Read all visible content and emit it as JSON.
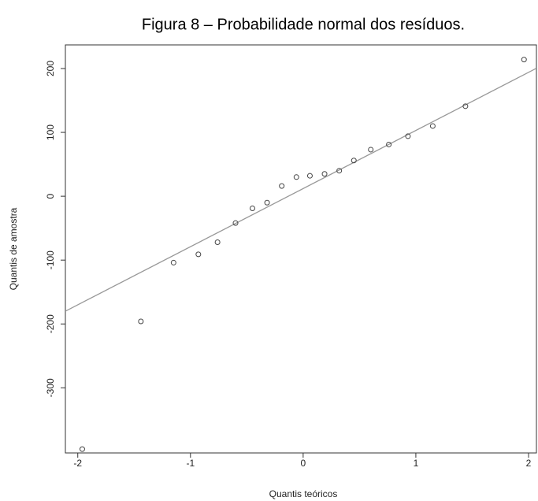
{
  "chart_data": {
    "type": "scatter",
    "title": "Figura 8 – Probabilidade normal dos resíduos.",
    "x_label": "Quantis teóricos",
    "y_label": "Quantis de amostra",
    "x": [
      -1.96,
      -1.44,
      -1.15,
      -0.93,
      -0.76,
      -0.6,
      -0.45,
      -0.32,
      -0.19,
      -0.06,
      0.06,
      0.19,
      0.32,
      0.45,
      0.6,
      0.76,
      0.93,
      1.15,
      1.44,
      1.96
    ],
    "values": [
      -396,
      -196,
      -104,
      -91,
      -72,
      -42,
      -19,
      -10,
      16,
      30,
      32,
      35,
      40,
      56,
      73,
      81,
      94,
      110,
      141,
      214
    ],
    "color": "#444444",
    "reference_line": {
      "intercept": 12,
      "slope": 91,
      "color": "#999999"
    },
    "xlim": [
      -2.11,
      2.07
    ],
    "xticks": [
      -2,
      -1,
      0,
      1,
      2
    ],
    "ylim": [
      -402,
      237
    ],
    "yticks": [
      -300,
      -200,
      -100,
      0,
      100,
      200
    ]
  }
}
